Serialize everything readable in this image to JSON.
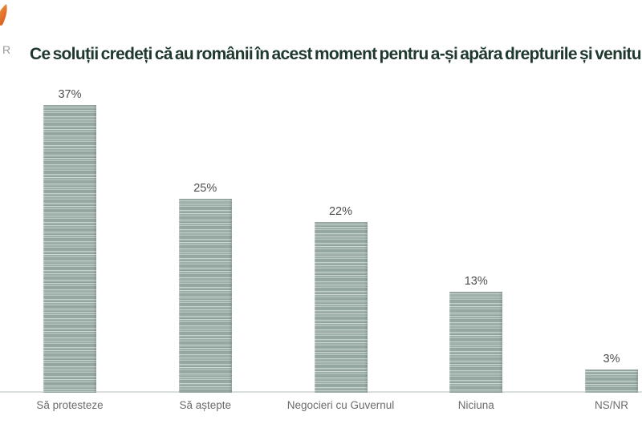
{
  "page": {
    "background": "#ffffff"
  },
  "logo": {
    "fragment_text": "R",
    "flame_color_top": "#f09a3e",
    "flame_color_bottom": "#d95b1e"
  },
  "header": {
    "title": "Ce soluții credeți că au românii în acest moment pentru a-și apăra drepturile și venitur",
    "title_color": "#20392f"
  },
  "chart_data": {
    "type": "bar",
    "title": "Ce soluții credeți că au românii în acest moment pentru a-și apăra drepturile și venitur",
    "categories": [
      "Să protesteze",
      "Să aștepte",
      "Negocieri cu Guvernul",
      "Niciuna",
      "NS/NR"
    ],
    "values": [
      37,
      25,
      22,
      13,
      3
    ],
    "value_labels": [
      "37%",
      "25%",
      "22%",
      "13%",
      "3%"
    ],
    "xlabel": "",
    "ylabel": "",
    "ylim": [
      0,
      40
    ],
    "grid": false,
    "legend": false,
    "bar_color_base": "#9fb2ab",
    "bar_stripe_light": "#ccd7d2",
    "bar_texture": "horizontal-stripes",
    "axis_line_color": "#dadedd",
    "value_label_color": "#4e4e4e",
    "category_label_color": "#6b6b6b"
  }
}
